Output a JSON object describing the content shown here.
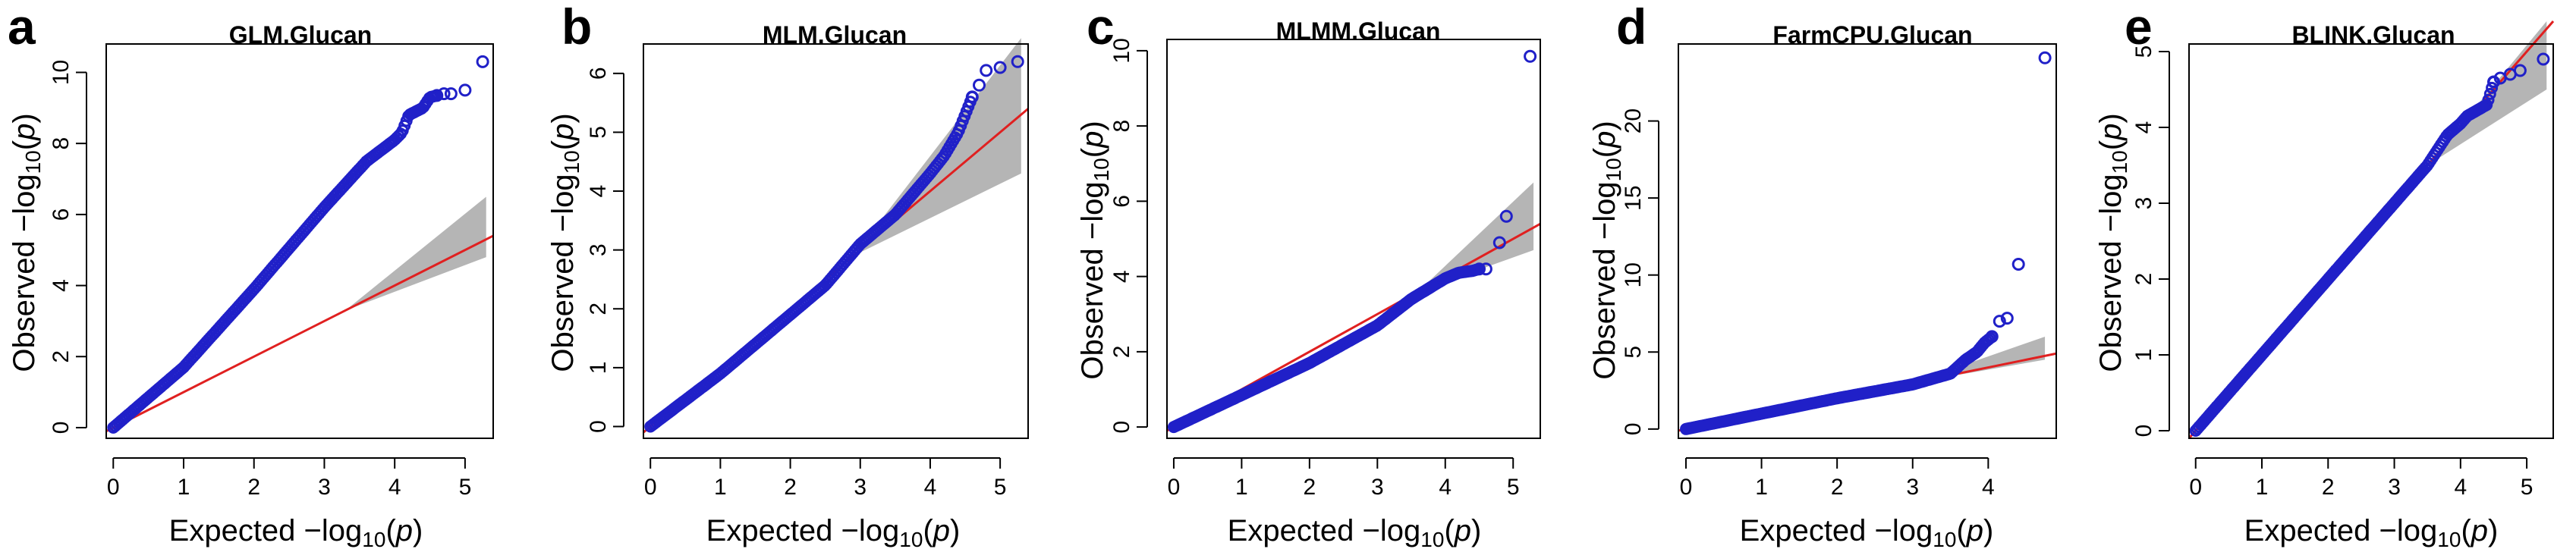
{
  "colors": {
    "points": "#2020c8",
    "reference_line": "#e02020",
    "confidence_band": "#b5b5b5"
  },
  "chart_data": [
    {
      "type": "scatter",
      "panel_label": "a",
      "title": "GLM.Glucan",
      "xlabel": "Expected",
      "ylabel": "Observed",
      "xlim": [
        -0.1,
        5.4
      ],
      "ylim": [
        -0.3,
        10.8
      ],
      "xticks": [
        0,
        1,
        2,
        3,
        4,
        5
      ],
      "yticks": [
        0,
        2,
        4,
        6,
        8,
        10
      ],
      "reference_line": {
        "x": [
          -0.1,
          5.4
        ],
        "y": [
          -0.1,
          5.4
        ]
      },
      "ci_band": {
        "x": [
          3.3,
          5.3
        ],
        "upper_at_end": 6.5,
        "lower_at_end": 4.8
      },
      "observed_vs_expected": {
        "x": [
          0,
          1,
          2,
          3,
          3.6,
          4.0,
          4.1,
          4.2,
          4.3,
          4.4,
          4.5,
          4.6,
          4.7,
          4.8,
          5.0,
          5.25
        ],
        "y": [
          0,
          1.7,
          3.9,
          6.2,
          7.5,
          8.1,
          8.3,
          8.8,
          8.9,
          9.0,
          9.3,
          9.35,
          9.4,
          9.4,
          9.5,
          10.3
        ]
      }
    },
    {
      "type": "scatter",
      "panel_label": "b",
      "title": "MLM.Glucan",
      "xlabel": "Expected",
      "ylabel": "Observed",
      "xlim": [
        -0.1,
        5.4
      ],
      "ylim": [
        -0.2,
        6.5
      ],
      "xticks": [
        0,
        1,
        2,
        3,
        4,
        5
      ],
      "yticks": [
        0,
        1,
        2,
        3,
        4,
        5,
        6
      ],
      "reference_line": {
        "x": [
          -0.1,
          5.4
        ],
        "y": [
          -0.1,
          5.4
        ]
      },
      "ci_band": {
        "x": [
          2.9,
          5.3
        ],
        "upper_at_end": 6.6,
        "lower_at_end": 4.3
      },
      "observed_vs_expected": {
        "x": [
          0,
          1,
          2,
          2.5,
          3,
          3.5,
          4,
          4.2,
          4.4,
          4.5,
          4.6,
          4.7,
          4.8,
          5.0,
          5.25
        ],
        "y": [
          0,
          0.9,
          1.9,
          2.4,
          3.1,
          3.6,
          4.3,
          4.6,
          5.0,
          5.3,
          5.6,
          5.8,
          6.05,
          6.1,
          6.2
        ]
      }
    },
    {
      "type": "scatter",
      "panel_label": "c",
      "title": "MLMM.Glucan",
      "xlabel": "Expected",
      "ylabel": "Observed",
      "xlim": [
        -0.1,
        5.4
      ],
      "ylim": [
        -0.3,
        10.3
      ],
      "xticks": [
        0,
        1,
        2,
        3,
        4,
        5
      ],
      "yticks": [
        0,
        2,
        4,
        6,
        8,
        10
      ],
      "reference_line": {
        "x": [
          -0.1,
          5.4
        ],
        "y": [
          -0.1,
          5.4
        ]
      },
      "ci_band": {
        "x": [
          3.6,
          5.3
        ],
        "upper_at_end": 6.5,
        "lower_at_end": 4.7
      },
      "observed_vs_expected": {
        "x": [
          0,
          1,
          2,
          3,
          3.5,
          4,
          4.2,
          4.4,
          4.5,
          4.6,
          4.8,
          4.9,
          5.25
        ],
        "y": [
          0,
          0.85,
          1.7,
          2.7,
          3.4,
          3.95,
          4.1,
          4.15,
          4.2,
          4.2,
          4.9,
          5.6,
          9.85
        ]
      }
    },
    {
      "type": "scatter",
      "panel_label": "d",
      "title": "FarmCPU.Glucan",
      "xlabel": "Expected",
      "ylabel": "Observed",
      "xlim": [
        -0.1,
        4.9
      ],
      "ylim": [
        -0.6,
        25
      ],
      "xticks": [
        0,
        1,
        2,
        3,
        4
      ],
      "yticks": [
        0,
        5,
        10,
        15,
        20
      ],
      "reference_line": {
        "x": [
          -0.1,
          4.9
        ],
        "y": [
          -0.1,
          4.9
        ]
      },
      "ci_band": {
        "x": [
          3.0,
          4.75
        ],
        "upper_at_end": 6.0,
        "lower_at_end": 4.5
      },
      "observed_vs_expected": {
        "x": [
          0,
          1,
          2,
          3,
          3.5,
          3.7,
          3.85,
          3.95,
          4.05,
          4.15,
          4.25,
          4.4,
          4.75
        ],
        "y": [
          0,
          1.0,
          2.0,
          2.9,
          3.6,
          4.5,
          5.0,
          5.6,
          6.0,
          7.0,
          7.2,
          10.7,
          24.1
        ]
      }
    },
    {
      "type": "scatter",
      "panel_label": "e",
      "title": "BLINK.Glucan",
      "xlabel": "Expected",
      "ylabel": "Observed",
      "xlim": [
        -0.1,
        5.4
      ],
      "ylim": [
        -0.1,
        5.1
      ],
      "xticks": [
        0,
        1,
        2,
        3,
        4,
        5
      ],
      "yticks": [
        0,
        1,
        2,
        3,
        4,
        5
      ],
      "reference_line": {
        "x": [
          -0.1,
          5.4
        ],
        "y": [
          -0.1,
          5.4
        ]
      },
      "ci_band": {
        "x": [
          3.5,
          5.3
        ],
        "upper_at_end": 5.4,
        "lower_at_end": 4.5
      },
      "observed_vs_expected": {
        "x": [
          0,
          1,
          2,
          3,
          3.5,
          3.8,
          4.0,
          4.1,
          4.2,
          4.3,
          4.4,
          4.5,
          4.6,
          4.75,
          4.9,
          5.25
        ],
        "y": [
          0,
          1.0,
          2.0,
          3.0,
          3.5,
          3.9,
          4.05,
          4.15,
          4.2,
          4.25,
          4.3,
          4.6,
          4.65,
          4.7,
          4.75,
          4.9
        ]
      }
    }
  ]
}
